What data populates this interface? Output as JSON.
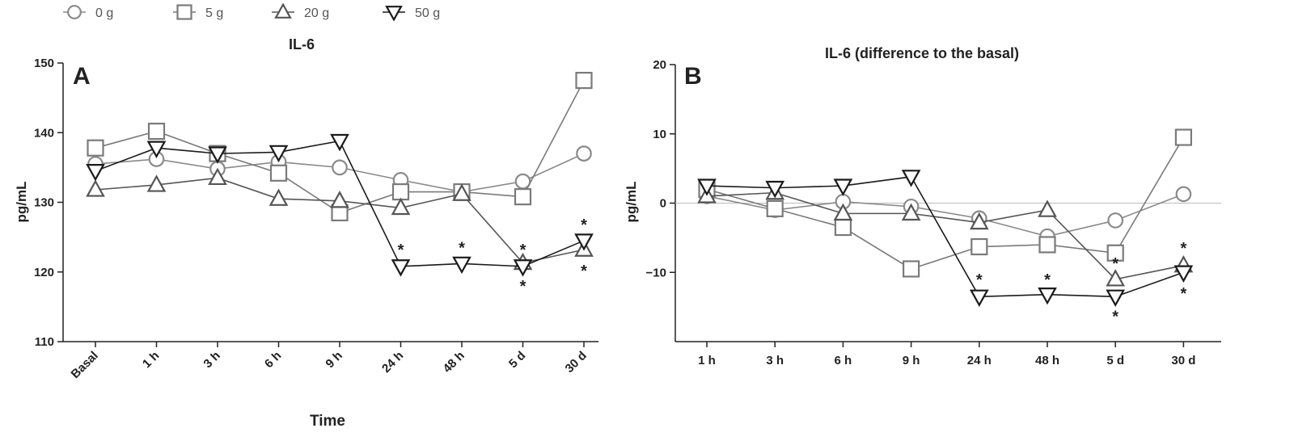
{
  "colors": {
    "s0": "#8a8a8a",
    "s5": "#7a7a7a",
    "s20": "#555555",
    "s50": "#1a1a1a"
  },
  "chart_data": [
    {
      "type": "line",
      "title": "IL-6",
      "panel": "A",
      "xlabel": "Time",
      "ylabel": "pg/mL",
      "categories": [
        "Basal",
        "1 h",
        "3 h",
        "6 h",
        "9 h",
        "24 h",
        "48 h",
        "5 d",
        "30 d"
      ],
      "ylim": [
        110,
        150
      ],
      "yticks": [
        110,
        120,
        130,
        140,
        150
      ],
      "legend": "top-left",
      "series": [
        {
          "name": "0 g",
          "marker": "circle",
          "values": [
            135.5,
            136.2,
            134.8,
            135.8,
            135.0,
            133.2,
            131.5,
            133.0,
            137.0
          ]
        },
        {
          "name": "5 g",
          "marker": "square",
          "values": [
            137.8,
            140.2,
            137.0,
            134.2,
            128.5,
            131.5,
            131.5,
            130.8,
            147.5
          ]
        },
        {
          "name": "20 g",
          "marker": "triangle-up",
          "values": [
            131.8,
            132.5,
            133.5,
            130.5,
            130.2,
            129.2,
            131.2,
            121.3,
            123.2
          ]
        },
        {
          "name": "50 g",
          "marker": "triangle-down",
          "values": [
            134.5,
            137.8,
            137.0,
            137.2,
            138.8,
            120.8,
            121.2,
            120.8,
            124.5
          ]
        }
      ],
      "annotations": [
        {
          "text": "*",
          "x": "24 h",
          "y": 123.2
        },
        {
          "text": "*",
          "x": "48 h",
          "y": 123.5
        },
        {
          "text": "*",
          "x": "5 d",
          "y": 123.2
        },
        {
          "text": "*",
          "x": "5 d",
          "y": 118.0
        },
        {
          "text": "*",
          "x": "30 d",
          "y": 126.8
        },
        {
          "text": "*",
          "x": "30 d",
          "y": 120.2
        }
      ]
    },
    {
      "type": "line",
      "title": "IL-6 (difference to the basal)",
      "panel": "B",
      "xlabel": "",
      "ylabel": "pg/mL",
      "categories": [
        "1 h",
        "3 h",
        "6 h",
        "9 h",
        "24 h",
        "48 h",
        "5 d",
        "30 d"
      ],
      "ylim": [
        -20,
        20
      ],
      "yticks": [
        -10,
        0,
        10,
        20
      ],
      "series": [
        {
          "name": "0 g",
          "marker": "circle",
          "values": [
            1.0,
            -1.0,
            0.2,
            -0.5,
            -2.2,
            -4.8,
            -2.5,
            1.3
          ]
        },
        {
          "name": "5 g",
          "marker": "square",
          "values": [
            2.0,
            -0.8,
            -3.5,
            -9.5,
            -6.3,
            -6.0,
            -7.2,
            9.5
          ]
        },
        {
          "name": "20 g",
          "marker": "triangle-up",
          "values": [
            1.0,
            1.5,
            -1.5,
            -1.5,
            -2.8,
            -1.0,
            -11.0,
            -9.0
          ]
        },
        {
          "name": "50 g",
          "marker": "triangle-down",
          "values": [
            2.5,
            2.2,
            2.5,
            3.8,
            -13.5,
            -13.2,
            -13.5,
            -10.0
          ]
        }
      ],
      "annotations": [
        {
          "text": "*",
          "x": "24 h",
          "y": -11.0
        },
        {
          "text": "*",
          "x": "48 h",
          "y": -11.0
        },
        {
          "text": "*",
          "x": "5 d",
          "y": -8.7
        },
        {
          "text": "*",
          "x": "5 d",
          "y": -16.3
        },
        {
          "text": "*",
          "x": "30 d",
          "y": -6.5
        },
        {
          "text": "*",
          "x": "30 d",
          "y": -13.0
        }
      ]
    }
  ]
}
